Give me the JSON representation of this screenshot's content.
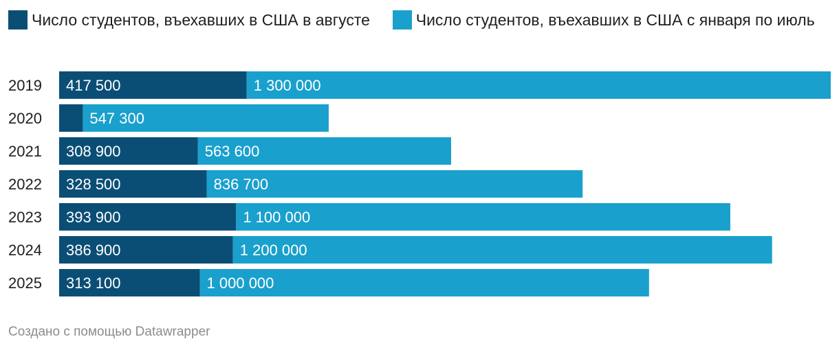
{
  "chart_data": {
    "type": "bar",
    "orientation": "horizontal",
    "stacked": true,
    "categories": [
      "2019",
      "2020",
      "2021",
      "2022",
      "2023",
      "2024",
      "2025"
    ],
    "series": [
      {
        "name": "Число студентов, въехавших в США в августе",
        "color": "#0b4e75",
        "values": [
          417500,
          52700,
          308900,
          328500,
          393900,
          386900,
          313100
        ],
        "labels": [
          "417 500",
          "",
          "308 900",
          "328 500",
          "393 900",
          "386 900",
          "313 100"
        ]
      },
      {
        "name": "Число студентов, въехавших в США с января по июль",
        "color": "#1aa0cd",
        "values": [
          1300000,
          547300,
          563600,
          836700,
          1100000,
          1200000,
          1000000
        ],
        "labels": [
          "1 300 000",
          "547 300",
          "563 600",
          "836 700",
          "1 100 000",
          "1 200 000",
          "1 000 000"
        ]
      }
    ],
    "xlim": [
      0,
      1717500
    ],
    "grid": false,
    "legend": "top"
  },
  "footer": "Создано с помощью Datawrapper"
}
